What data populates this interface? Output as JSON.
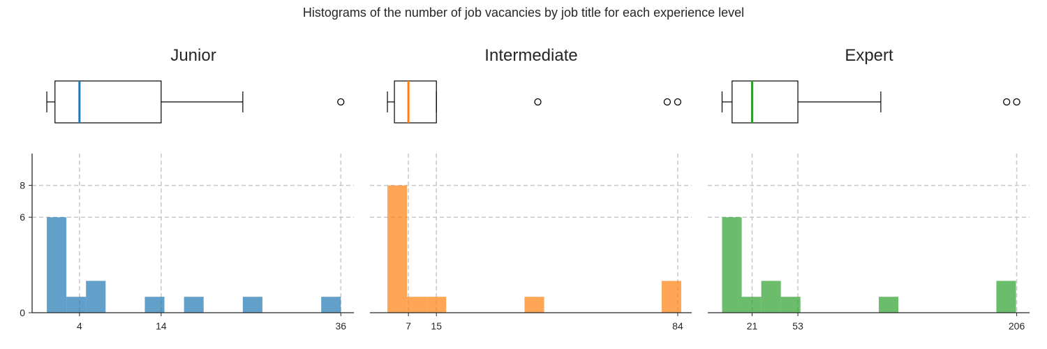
{
  "suptitle": "Histograms of the number of job vacancies by job title for each experience level",
  "chart_data": [
    {
      "type": "histogram",
      "title": "Junior",
      "color": "#1f77b4",
      "xlim": [
        -1.8,
        37.6
      ],
      "ylim": [
        0,
        10
      ],
      "bins": [
        {
          "x0": 0.0,
          "x1": 2.4,
          "count": 6
        },
        {
          "x0": 2.4,
          "x1": 4.8,
          "count": 1
        },
        {
          "x0": 4.8,
          "x1": 7.2,
          "count": 2
        },
        {
          "x0": 12.0,
          "x1": 14.4,
          "count": 1
        },
        {
          "x0": 16.8,
          "x1": 19.2,
          "count": 1
        },
        {
          "x0": 24.0,
          "x1": 26.4,
          "count": 1
        },
        {
          "x0": 33.6,
          "x1": 36.0,
          "count": 1
        }
      ],
      "xticks": [
        4,
        14,
        36
      ],
      "yticks": [
        0,
        6,
        8
      ],
      "box": {
        "whisker_low": 0,
        "q1": 1,
        "median": 4,
        "q3": 14,
        "whisker_high": 24,
        "outliers": [
          36
        ]
      }
    },
    {
      "type": "histogram",
      "title": "Intermediate",
      "color": "#ff7f0e",
      "xlim": [
        -4.0,
        88.0
      ],
      "ylim": [
        0,
        10
      ],
      "bins": [
        {
          "x0": 1.0,
          "x1": 6.6,
          "count": 8
        },
        {
          "x0": 6.6,
          "x1": 12.2,
          "count": 1
        },
        {
          "x0": 12.2,
          "x1": 17.8,
          "count": 1
        },
        {
          "x0": 40.2,
          "x1": 45.8,
          "count": 1
        },
        {
          "x0": 79.4,
          "x1": 85.0,
          "count": 2
        }
      ],
      "xticks": [
        7,
        15,
        84
      ],
      "yticks": [
        0,
        6,
        8
      ],
      "box": {
        "whisker_low": 1,
        "q1": 3,
        "median": 7,
        "q3": 15,
        "whisker_high": 15,
        "outliers": [
          44,
          81,
          84
        ]
      }
    },
    {
      "type": "histogram",
      "title": "Expert",
      "color": "#2ca02c",
      "xlim": [
        -10.0,
        215.0
      ],
      "ylim": [
        0,
        10
      ],
      "bins": [
        {
          "x0": 0.0,
          "x1": 13.7,
          "count": 6
        },
        {
          "x0": 13.7,
          "x1": 27.4,
          "count": 1
        },
        {
          "x0": 27.4,
          "x1": 41.1,
          "count": 2
        },
        {
          "x0": 41.1,
          "x1": 54.8,
          "count": 1
        },
        {
          "x0": 109.6,
          "x1": 123.3,
          "count": 1
        },
        {
          "x0": 191.8,
          "x1": 205.5,
          "count": 2
        }
      ],
      "xticks": [
        21,
        53,
        206
      ],
      "yticks": [
        0,
        6,
        8
      ],
      "box": {
        "whisker_low": 0,
        "q1": 7,
        "median": 21,
        "q3": 53,
        "whisker_high": 111,
        "outliers": [
          199,
          206
        ]
      }
    }
  ]
}
